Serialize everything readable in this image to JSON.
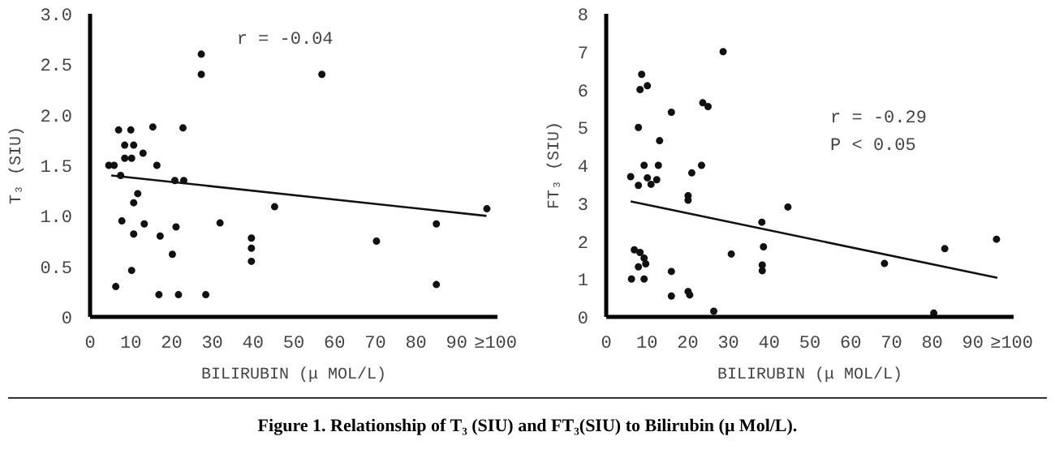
{
  "chart_data": [
    {
      "type": "scatter",
      "xlabel": "BILIRUBIN (μ MOL/L)",
      "ylabel": "T₃ (SIU)",
      "xlim": [
        0,
        100
      ],
      "ylim": [
        0,
        3.0
      ],
      "grid": false,
      "xticks": [
        0,
        10,
        20,
        30,
        40,
        50,
        60,
        70,
        80,
        90,
        {
          "value": 100,
          "label": "≥100"
        }
      ],
      "yticks": [
        0,
        0.5,
        {
          "value": 1,
          "label": "1.0"
        },
        1.5,
        {
          "value": 2,
          "label": "2.0"
        },
        2.5,
        {
          "value": 3,
          "label": "3.0"
        }
      ],
      "annotations": [
        "r = -0.04"
      ],
      "series": [
        {
          "color": "#111111",
          "marker": "circle",
          "x": [
            4.6,
            5.9,
            7.5,
            7,
            10,
            8.5,
            10.7,
            8.5,
            10.2,
            13,
            15.4,
            16.4,
            22.8,
            20.8,
            23.0,
            27.3,
            27.3,
            11.7,
            10.7,
            7.8,
            13.3,
            10.7,
            17.2,
            21.1,
            31.9,
            45.3,
            56.9,
            70.3,
            85,
            97.4,
            20.2,
            39.6,
            39.6,
            39.6,
            6.3,
            10.2,
            16.9,
            21.7,
            28.4,
            85
          ],
          "values": [
            1.5,
            1.5,
            1.4,
            1.85,
            1.85,
            1.7,
            1.7,
            1.57,
            1.57,
            1.62,
            1.88,
            1.5,
            1.87,
            1.35,
            1.35,
            2.6,
            2.4,
            1.22,
            1.13,
            0.95,
            0.92,
            0.82,
            0.8,
            0.89,
            0.93,
            1.09,
            2.4,
            0.75,
            0.92,
            1.07,
            0.62,
            0.78,
            0.68,
            0.55,
            0.3,
            0.46,
            0.22,
            0.22,
            0.22,
            0.32
          ]
        },
        {
          "type": "line",
          "color": "#111111",
          "x": [
            5.2,
            97.3
          ],
          "values": [
            1.4,
            1.0
          ]
        }
      ]
    },
    {
      "type": "scatter",
      "xlabel": "BILIRUBIN (μ MOL/L)",
      "ylabel": "FT₃ (SIU)",
      "xlim": [
        0,
        100
      ],
      "ylim": [
        0,
        8
      ],
      "grid": false,
      "xticks": [
        0,
        10,
        20,
        30,
        40,
        50,
        60,
        70,
        80,
        90,
        {
          "value": 100,
          "label": "≥100"
        }
      ],
      "yticks": [
        0,
        1,
        2,
        3,
        4,
        5,
        6,
        7,
        8
      ],
      "annotations": [
        "r = -0.29",
        "P <  0.05",
        "Figure 1. Relationship of T₃ (SIU) and FT₃(SIU) to Bilirubin (μ Mol/L)."
      ],
      "series": [
        {
          "color": "#111111",
          "marker": "circle",
          "x": [
            28.7,
            8.7,
            8.3,
            10.1,
            16,
            23.7,
            25,
            7.9,
            13.1,
            9.3,
            12.8,
            23.4,
            6,
            10.1,
            12.4,
            7.9,
            11,
            21,
            20.1,
            20.1,
            44.6,
            38.2,
            38.6,
            30.7,
            38.3,
            38.3,
            68.3,
            83.1,
            95.8,
            80.4,
            26.4,
            16,
            16,
            20.1,
            20.5,
            6.9,
            8.3,
            9.3,
            9.7,
            7.9,
            6.2,
            9.3
          ],
          "values": [
            7.0,
            6.4,
            6.0,
            6.1,
            5.4,
            5.65,
            5.55,
            5.0,
            4.65,
            4.0,
            4.0,
            4.0,
            3.7,
            3.67,
            3.62,
            3.47,
            3.5,
            3.8,
            3.2,
            3.08,
            2.9,
            2.5,
            1.85,
            1.66,
            1.37,
            1.22,
            1.41,
            1.8,
            2.05,
            0.1,
            0.15,
            1.2,
            0.55,
            0.67,
            0.58,
            1.77,
            1.7,
            1.55,
            1.4,
            1.32,
            1.0,
            1.0
          ]
        },
        {
          "type": "line",
          "color": "#111111",
          "x": [
            6,
            96
          ],
          "values": [
            3.05,
            1.03
          ]
        }
      ]
    }
  ]
}
